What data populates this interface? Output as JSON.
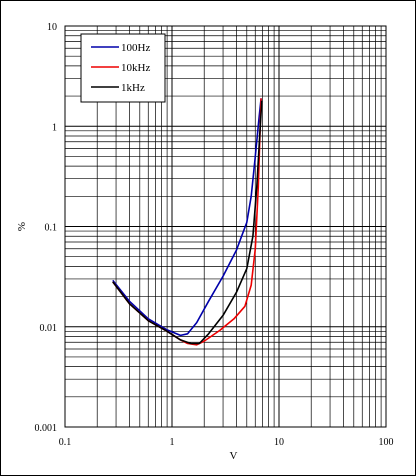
{
  "chart_data": {
    "type": "line",
    "xlabel": "V",
    "ylabel": "%",
    "xscale": "log",
    "yscale": "log",
    "xlim": [
      0.1,
      100
    ],
    "ylim": [
      0.001,
      10
    ],
    "grid": true,
    "legend_position": "top-left",
    "x_ticks": [
      "0.1",
      "1",
      "10",
      "100"
    ],
    "y_ticks": [
      "0.001",
      "0.01",
      "0.1",
      "1",
      "10"
    ],
    "series": [
      {
        "name": "100Hz",
        "color": "#0000aa",
        "points": [
          [
            0.28,
            0.029
          ],
          [
            0.4,
            0.018
          ],
          [
            0.6,
            0.012
          ],
          [
            0.9,
            0.0093
          ],
          [
            1.2,
            0.0082
          ],
          [
            1.4,
            0.0085
          ],
          [
            1.7,
            0.011
          ],
          [
            2.2,
            0.018
          ],
          [
            3.0,
            0.032
          ],
          [
            4.0,
            0.058
          ],
          [
            5.0,
            0.11
          ],
          [
            5.5,
            0.2
          ],
          [
            6.0,
            0.5
          ],
          [
            6.5,
            1.2
          ],
          [
            6.8,
            1.9
          ]
        ]
      },
      {
        "name": "10kHz",
        "color": "#ee0000",
        "points": [
          [
            0.28,
            0.028
          ],
          [
            0.4,
            0.017
          ],
          [
            0.6,
            0.0115
          ],
          [
            0.9,
            0.009
          ],
          [
            1.2,
            0.0074
          ],
          [
            1.4,
            0.0068
          ],
          [
            1.7,
            0.0066
          ],
          [
            2.0,
            0.0072
          ],
          [
            2.8,
            0.0092
          ],
          [
            3.8,
            0.012
          ],
          [
            4.8,
            0.016
          ],
          [
            5.5,
            0.026
          ],
          [
            6.0,
            0.06
          ],
          [
            6.4,
            0.25
          ],
          [
            6.8,
            1.9
          ]
        ]
      },
      {
        "name": "1kHz",
        "color": "#000000",
        "points": [
          [
            0.28,
            0.028
          ],
          [
            0.4,
            0.017
          ],
          [
            0.6,
            0.0115
          ],
          [
            0.9,
            0.009
          ],
          [
            1.2,
            0.0074
          ],
          [
            1.5,
            0.0068
          ],
          [
            1.8,
            0.0068
          ],
          [
            2.2,
            0.0085
          ],
          [
            3.0,
            0.013
          ],
          [
            4.0,
            0.022
          ],
          [
            5.0,
            0.038
          ],
          [
            5.7,
            0.08
          ],
          [
            6.2,
            0.25
          ],
          [
            6.6,
            0.8
          ],
          [
            6.9,
            1.8
          ]
        ]
      }
    ]
  }
}
